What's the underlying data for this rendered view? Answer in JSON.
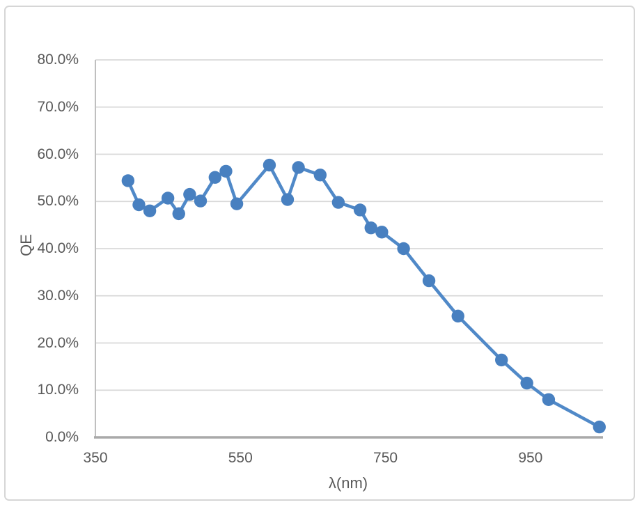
{
  "figure": {
    "background_color": "#FFFFFF",
    "border_color": "#D6D6D6"
  },
  "chart_data": {
    "type": "line",
    "title": "",
    "xlabel": "λ(nm)",
    "ylabel": "QE",
    "xlim": [
      350,
      1050
    ],
    "ylim_percent": [
      0,
      80
    ],
    "x_tick_labels": [
      "350",
      "550",
      "750",
      "950"
    ],
    "x_tick_values": [
      350,
      550,
      750,
      950
    ],
    "y_tick_labels": [
      "0.0%",
      "10.0%",
      "20.0%",
      "30.0%",
      "40.0%",
      "50.0%",
      "60.0%",
      "70.0%",
      "80.0%"
    ],
    "y_tick_values": [
      0,
      10,
      20,
      30,
      40,
      50,
      60,
      70,
      80
    ],
    "grid": "horizontal",
    "legend": "none",
    "series": [
      {
        "name": "QE",
        "marker": "circle",
        "line_color": "#5089C8",
        "marker_color": "#4880C0",
        "points": [
          {
            "wavelength_nm": 395,
            "qe_percent": 54.4
          },
          {
            "wavelength_nm": 410,
            "qe_percent": 49.3
          },
          {
            "wavelength_nm": 425,
            "qe_percent": 48.0
          },
          {
            "wavelength_nm": 450,
            "qe_percent": 50.7
          },
          {
            "wavelength_nm": 465,
            "qe_percent": 47.4
          },
          {
            "wavelength_nm": 480,
            "qe_percent": 51.5
          },
          {
            "wavelength_nm": 495,
            "qe_percent": 50.1
          },
          {
            "wavelength_nm": 515,
            "qe_percent": 55.1
          },
          {
            "wavelength_nm": 530,
            "qe_percent": 56.4
          },
          {
            "wavelength_nm": 545,
            "qe_percent": 49.5
          },
          {
            "wavelength_nm": 590,
            "qe_percent": 57.7
          },
          {
            "wavelength_nm": 615,
            "qe_percent": 50.4
          },
          {
            "wavelength_nm": 630,
            "qe_percent": 57.2
          },
          {
            "wavelength_nm": 660,
            "qe_percent": 55.6
          },
          {
            "wavelength_nm": 685,
            "qe_percent": 49.8
          },
          {
            "wavelength_nm": 715,
            "qe_percent": 48.2
          },
          {
            "wavelength_nm": 730,
            "qe_percent": 44.4
          },
          {
            "wavelength_nm": 745,
            "qe_percent": 43.5
          },
          {
            "wavelength_nm": 775,
            "qe_percent": 40.0
          },
          {
            "wavelength_nm": 810,
            "qe_percent": 33.2
          },
          {
            "wavelength_nm": 850,
            "qe_percent": 25.7
          },
          {
            "wavelength_nm": 910,
            "qe_percent": 16.4
          },
          {
            "wavelength_nm": 945,
            "qe_percent": 11.5
          },
          {
            "wavelength_nm": 975,
            "qe_percent": 8.0
          },
          {
            "wavelength_nm": 1045,
            "qe_percent": 2.2
          }
        ]
      }
    ],
    "style": {
      "gridline_color": "#D9D9D9",
      "x_axis_line_color": "#A9A9A9",
      "y_axis_line_color": "#BFBFBF",
      "tick_label_color": "#595959"
    }
  }
}
